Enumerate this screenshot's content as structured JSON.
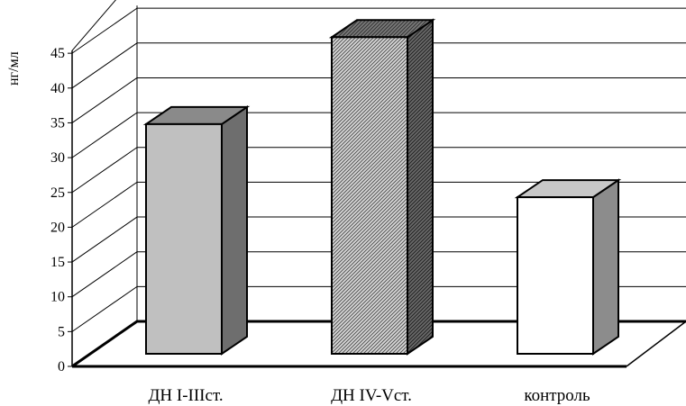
{
  "chart_data": {
    "type": "bar",
    "style": "3d",
    "ylabel": "нг/мл",
    "categories": [
      "ДН I-IIIст.",
      "ДН IV-Vст.",
      "контроль"
    ],
    "values": [
      33,
      45.5,
      22.5
    ],
    "ylim": [
      0,
      45
    ],
    "yticks": [
      0,
      5,
      10,
      15,
      20,
      25,
      30,
      35,
      40,
      45
    ],
    "grid": true,
    "bar_fills": [
      "solid-gray",
      "dense-hatch",
      "white"
    ],
    "colors": {
      "bar1_front": "#c0c0c0",
      "bar1_side": "#6e6e6e",
      "bar1_top": "#8a8a8a",
      "bar3_front": "#ffffff",
      "bar3_side": "#8c8c8c",
      "bar3_top": "#c8c8c8"
    }
  }
}
